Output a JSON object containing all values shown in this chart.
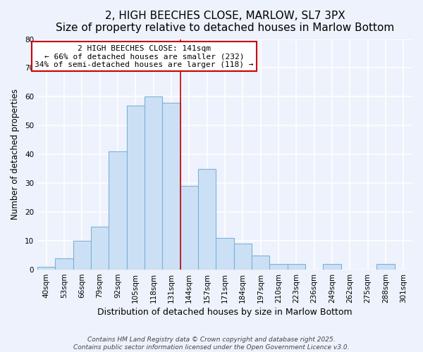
{
  "title": "2, HIGH BEECHES CLOSE, MARLOW, SL7 3PX",
  "subtitle": "Size of property relative to detached houses in Marlow Bottom",
  "xlabel": "Distribution of detached houses by size in Marlow Bottom",
  "ylabel": "Number of detached properties",
  "bar_labels": [
    "40sqm",
    "53sqm",
    "66sqm",
    "79sqm",
    "92sqm",
    "105sqm",
    "118sqm",
    "131sqm",
    "144sqm",
    "157sqm",
    "171sqm",
    "184sqm",
    "197sqm",
    "210sqm",
    "223sqm",
    "236sqm",
    "249sqm",
    "262sqm",
    "275sqm",
    "288sqm",
    "301sqm"
  ],
  "bar_values": [
    1,
    4,
    10,
    15,
    41,
    57,
    60,
    58,
    29,
    35,
    11,
    9,
    5,
    2,
    2,
    0,
    2,
    0,
    0,
    2,
    0
  ],
  "bar_color": "#cce0f5",
  "bar_edge_color": "#7ab3d9",
  "vline_color": "#cc0000",
  "ylim": [
    0,
    80
  ],
  "yticks": [
    0,
    10,
    20,
    30,
    40,
    50,
    60,
    70,
    80
  ],
  "annotation_title": "2 HIGH BEECHES CLOSE: 141sqm",
  "annotation_line1": "← 66% of detached houses are smaller (232)",
  "annotation_line2": "34% of semi-detached houses are larger (118) →",
  "annotation_box_color": "#cc0000",
  "background_color": "#eef2fc",
  "grid_color": "#ffffff",
  "footer_line1": "Contains HM Land Registry data © Crown copyright and database right 2025.",
  "footer_line2": "Contains public sector information licensed under the Open Government Licence v3.0.",
  "title_fontsize": 11,
  "subtitle_fontsize": 9.5,
  "xlabel_fontsize": 9,
  "ylabel_fontsize": 8.5,
  "tick_fontsize": 7.5,
  "annotation_fontsize": 8,
  "footer_fontsize": 6.5
}
